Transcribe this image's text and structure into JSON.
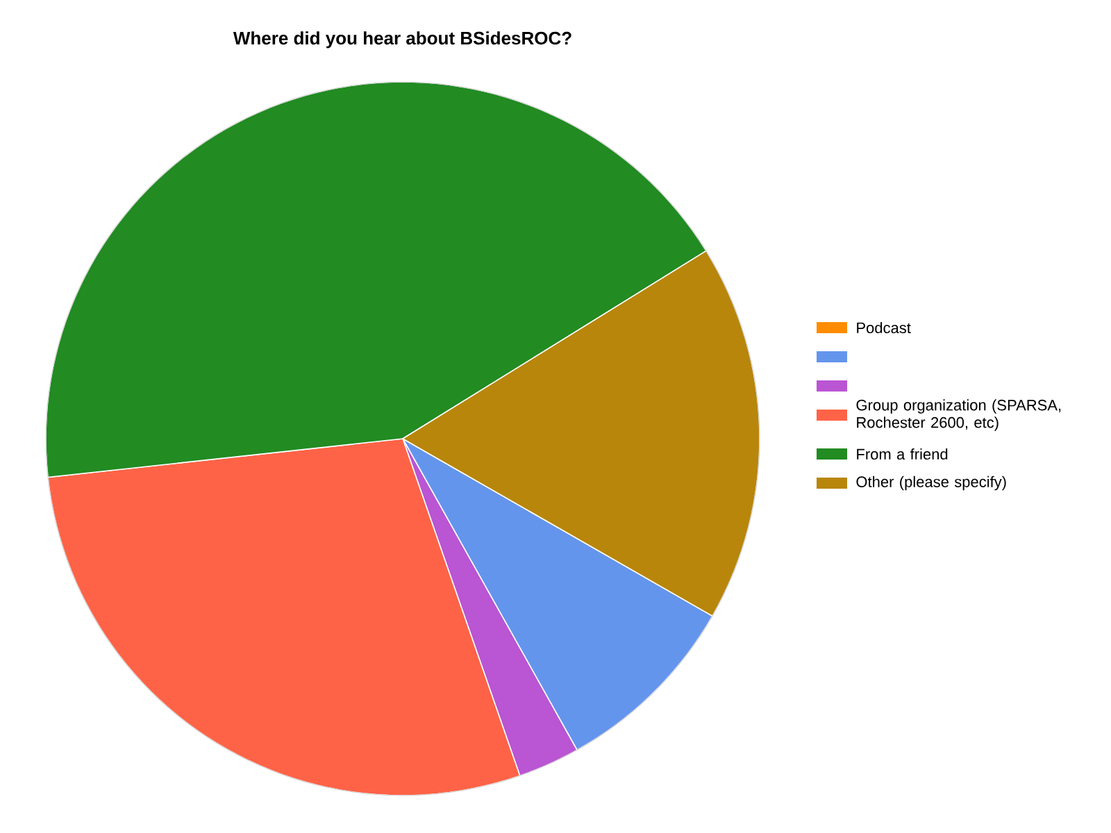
{
  "chart_data": {
    "type": "pie",
    "title": "Where did you hear about BSidesROC?",
    "categories": [
      "Podcast",
      null,
      null,
      "Group organization (SPARSA, Rochester 2600, etc)",
      "From a friend",
      "Other (please specify)"
    ],
    "values": [
      0,
      8.6,
      2.8,
      28.6,
      42.9,
      17.1
    ],
    "colors": [
      "#ff8c00",
      "#6495ed",
      "#ba55d3",
      "#ff6347",
      "#228b22",
      "#b8860b"
    ],
    "legend": "right"
  }
}
